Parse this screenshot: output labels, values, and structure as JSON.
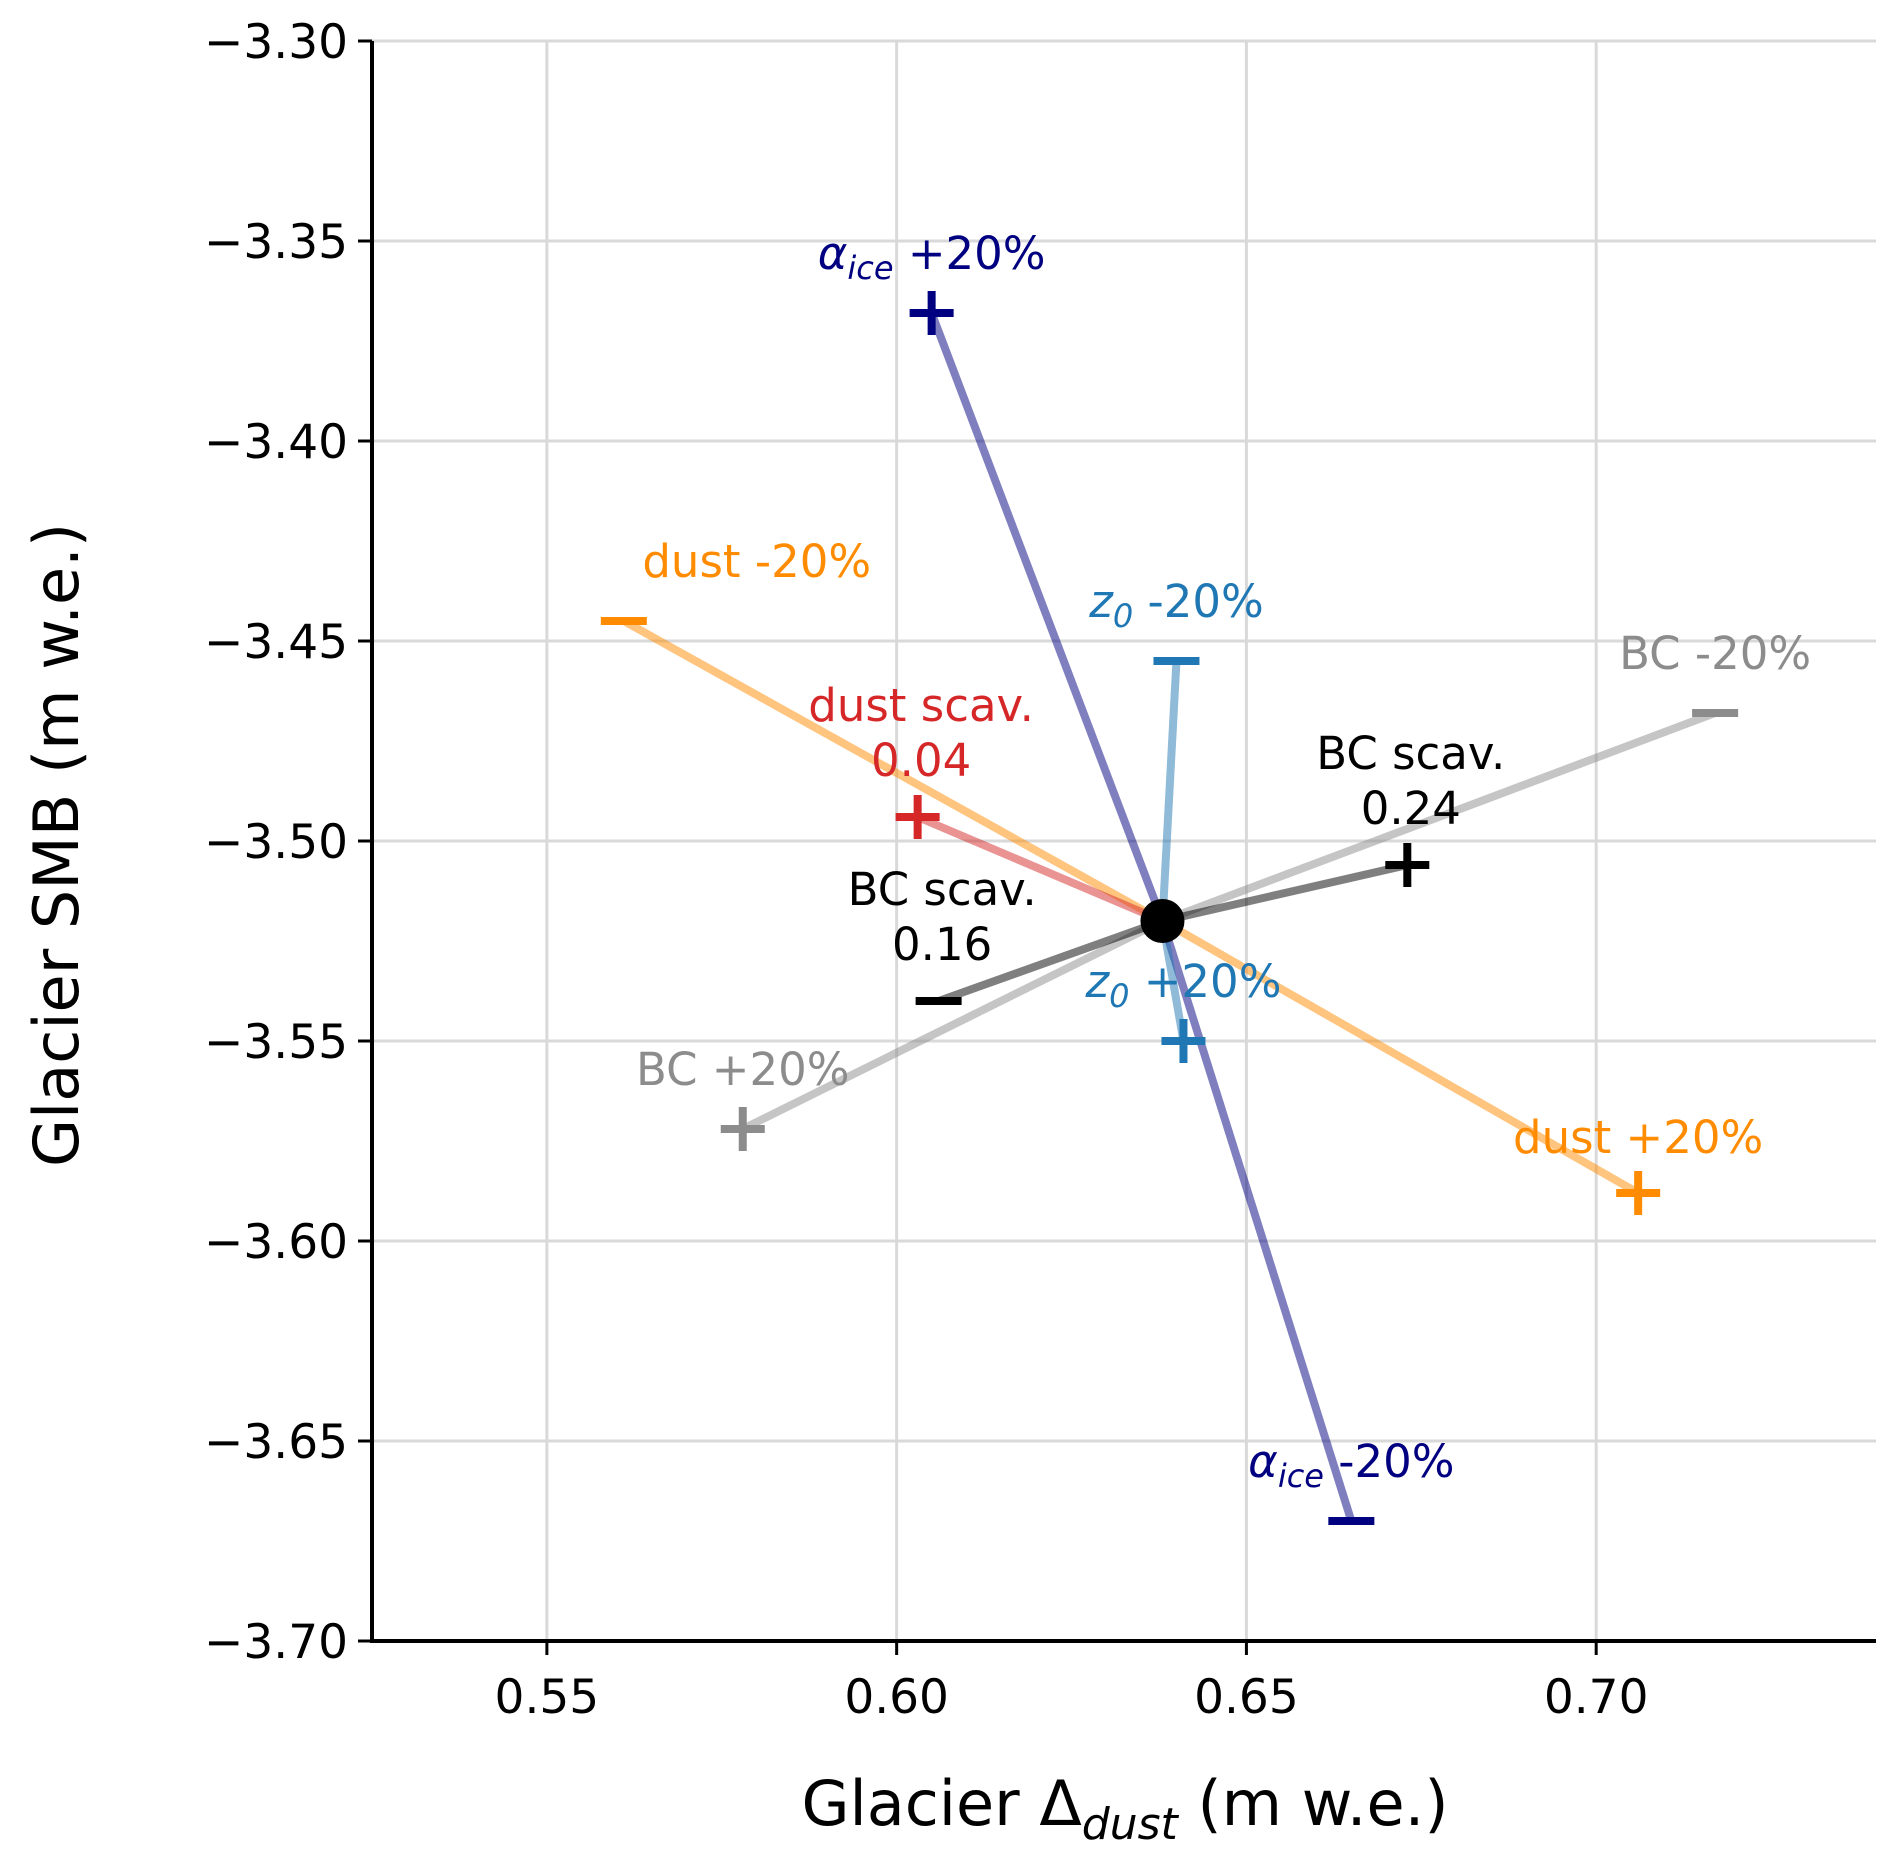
{
  "chart_data": {
    "type": "scatter",
    "xlabel": {
      "main": "Glacier Δ",
      "sub": "dust",
      "unit": " (m w.e.)"
    },
    "ylabel": "Glacier SMB (m w.e.)",
    "xlim": [
      0.525,
      0.74
    ],
    "ylim": [
      -3.7,
      -3.3
    ],
    "x_ticks": [
      0.55,
      0.6,
      0.65,
      0.7
    ],
    "x_tick_labels": [
      "0.55",
      "0.60",
      "0.65",
      "0.70"
    ],
    "y_ticks": [
      -3.3,
      -3.35,
      -3.4,
      -3.45,
      -3.5,
      -3.55,
      -3.6,
      -3.65,
      -3.7
    ],
    "y_tick_labels": [
      "−3.30",
      "−3.35",
      "−3.40",
      "−3.45",
      "−3.50",
      "−3.55",
      "−3.60",
      "−3.65",
      "−3.70"
    ],
    "grid": true,
    "center": {
      "x": 0.638,
      "y": -3.52
    },
    "series": [
      {
        "color": "#ff8c00",
        "points": [
          {
            "marker": "minus",
            "x": 0.561,
            "y": -3.445,
            "label": "dust -20%",
            "label_x": 0.58,
            "label_y": -3.434,
            "anchor": "middle"
          },
          {
            "marker": "plus",
            "x": 0.706,
            "y": -3.588,
            "label": "dust +20%",
            "label_x": 0.706,
            "label_y": -3.578,
            "anchor": "middle"
          }
        ]
      },
      {
        "color": "#000080",
        "points": [
          {
            "marker": "plus",
            "x": 0.605,
            "y": -3.368,
            "label": "α",
            "label_sub": "ice",
            "label_rest": " +20%",
            "label_x": 0.605,
            "label_y": -3.357,
            "anchor": "middle"
          },
          {
            "marker": "minus",
            "x": 0.665,
            "y": -3.67,
            "label": "α",
            "label_sub": "ice",
            "label_rest": " -20%",
            "label_x": 0.665,
            "label_y": -3.659,
            "anchor": "middle"
          }
        ]
      },
      {
        "color": "#1f77b4",
        "points": [
          {
            "marker": "minus",
            "x": 0.64,
            "y": -3.455,
            "label": "z",
            "label_sub": "0",
            "label_rest": " -20%",
            "label_x": 0.64,
            "label_y": -3.444,
            "anchor": "middle"
          },
          {
            "marker": "plus",
            "x": 0.641,
            "y": -3.55,
            "label": "z",
            "label_sub": "0",
            "label_rest": " +20%",
            "label_x": 0.641,
            "label_y": -3.539,
            "anchor": "middle"
          }
        ]
      },
      {
        "color": "#8c8c8c",
        "points": [
          {
            "marker": "minus",
            "x": 0.717,
            "y": -3.468,
            "label": "BC -20%",
            "label_x": 0.717,
            "label_y": -3.457,
            "anchor": "middle"
          },
          {
            "marker": "plus",
            "x": 0.578,
            "y": -3.572,
            "label": "BC +20%",
            "label_x": 0.578,
            "label_y": -3.561,
            "anchor": "middle"
          }
        ]
      },
      {
        "color": "#d62728",
        "points": [
          {
            "marker": "plus",
            "x": 0.603,
            "y": -3.494,
            "label": "dust scav.",
            "label2": "0.04",
            "label_x": 0.6035,
            "label_y": -3.47,
            "anchor": "middle"
          }
        ]
      },
      {
        "color": "#000000",
        "points": [
          {
            "marker": "minus",
            "x": 0.606,
            "y": -3.54,
            "label": "BC scav.",
            "label2": "0.16",
            "label_x": 0.6065,
            "label_y": -3.516,
            "anchor": "middle"
          },
          {
            "marker": "plus",
            "x": 0.673,
            "y": -3.506,
            "label": "BC scav.",
            "label2": "0.24",
            "label_x": 0.6735,
            "label_y": -3.482,
            "anchor": "middle"
          }
        ]
      }
    ]
  }
}
